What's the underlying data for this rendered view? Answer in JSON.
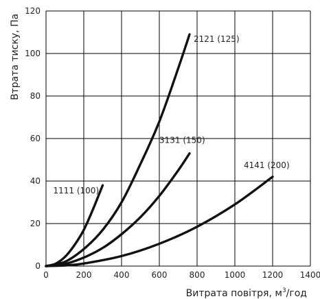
{
  "chart_data": {
    "type": "line",
    "xlabel": "Витрата повітря, м",
    "xlabel_sup": "3",
    "xlabel_suffix": "/год",
    "ylabel": "Втрата тиску, Па",
    "xlim": [
      0,
      1400
    ],
    "ylim": [
      0,
      120
    ],
    "x_ticks": [
      0,
      200,
      400,
      600,
      800,
      1000,
      1200,
      1400
    ],
    "y_ticks": [
      0,
      20,
      40,
      60,
      80,
      100,
      120
    ],
    "grid": true,
    "series": [
      {
        "name": "1111 (100)",
        "x": [
          0,
          50,
          100,
          150,
          200,
          250,
          300
        ],
        "y": [
          0,
          1.1,
          4.3,
          9.8,
          17,
          27,
          38
        ]
      },
      {
        "name": "2121 (125)",
        "x": [
          0,
          100,
          200,
          300,
          400,
          500,
          600,
          700,
          760
        ],
        "y": [
          0,
          2,
          8,
          17,
          30,
          48,
          68,
          93,
          109
        ]
      },
      {
        "name": "3131 (150)",
        "x": [
          0,
          100,
          200,
          300,
          400,
          500,
          600,
          700,
          760
        ],
        "y": [
          0,
          1,
          4,
          8.5,
          15,
          23,
          33,
          45,
          53
        ]
      },
      {
        "name": "4141 (200)",
        "x": [
          0,
          100,
          200,
          400,
          600,
          800,
          1000,
          1200
        ],
        "y": [
          0,
          0.3,
          1.2,
          4.7,
          10.5,
          18.5,
          29,
          42
        ]
      }
    ]
  }
}
